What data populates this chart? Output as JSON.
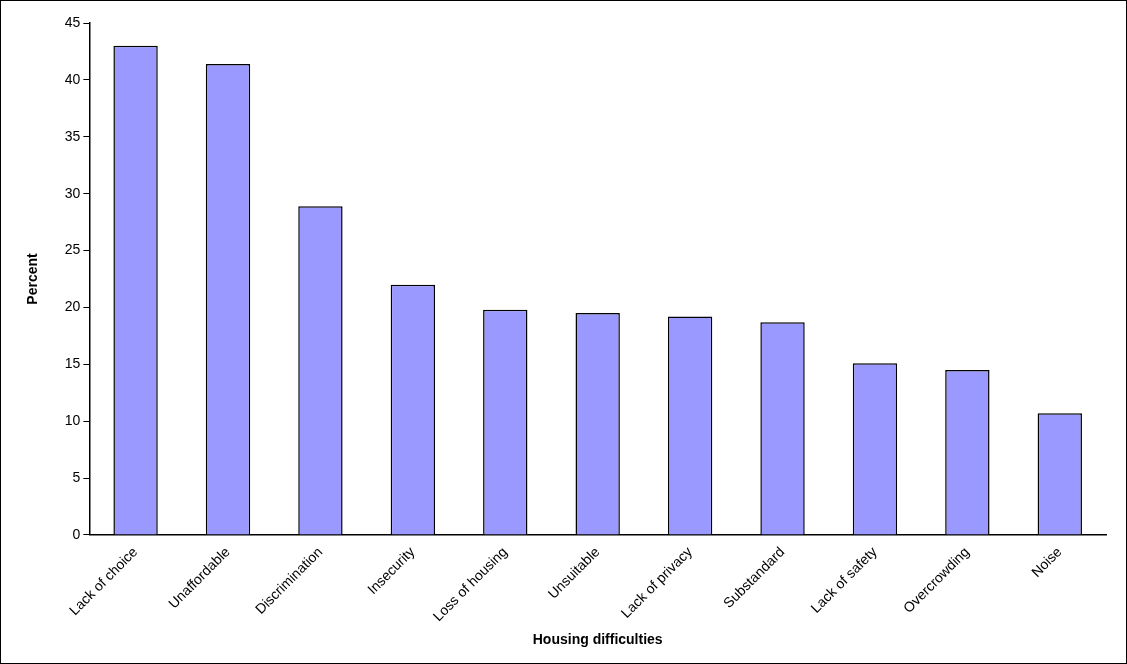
{
  "chart_data": {
    "type": "bar",
    "xlabel": "Housing difficulties",
    "ylabel": "Percent",
    "categories": [
      "Lack of choice",
      "Unaffordable",
      "Discrimination",
      "Insecurity",
      "Loss of housing",
      "Unsuitable",
      "Lack of privacy",
      "Substandard",
      "Lack of safety",
      "Overcrowding",
      "Noise"
    ],
    "values": [
      43,
      41.4,
      28.9,
      22,
      19.8,
      19.5,
      19.2,
      18.7,
      15.1,
      14.5,
      10.7
    ],
    "color": "#9999ff",
    "ylim": [
      0,
      45
    ],
    "yticks": [
      0,
      5,
      10,
      15,
      20,
      25,
      30,
      35,
      40,
      45
    ],
    "grid": false,
    "legend": false
  }
}
